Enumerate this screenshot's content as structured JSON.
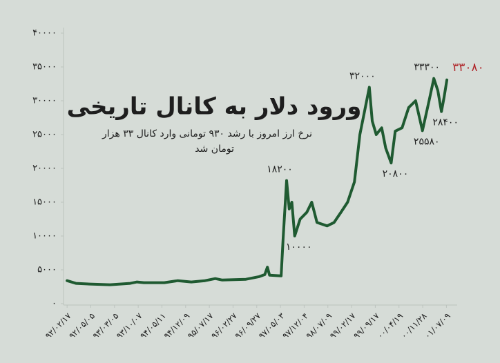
{
  "chart_data": {
    "type": "line",
    "title": "ورود دلار به کانال تاریخی",
    "subtitle": [
      "نرخ ارز امروز با رشد ۹۳۰ تومانی وارد  کانال ۳۳ هزار",
      "تومان شد"
    ],
    "color": "#1f5a31",
    "last_label_color": "#b0262a",
    "x": [
      0,
      0.37,
      0.95,
      1.81,
      2.66,
      2.95,
      3.24,
      4.1,
      4.67,
      5.24,
      5.82,
      6.25,
      6.53,
      7.54,
      8.11,
      8.34,
      8.45,
      8.54,
      9.03,
      9.11,
      9.26,
      9.37,
      9.48,
      9.6,
      9.83,
      10.11,
      10.32,
      10.54,
      10.97,
      11.26,
      11.55,
      11.83,
      12.12,
      12.35,
      12.55,
      12.75,
      12.87,
      13.04,
      13.27,
      13.44,
      13.67,
      13.84,
      14.13,
      14.41,
      14.7,
      14.99,
      15.27,
      15.47,
      15.64,
      15.79,
      15.9,
      16.02
    ],
    "values": [
      3400,
      3000,
      2900,
      2800,
      3000,
      3200,
      3100,
      3100,
      3400,
      3200,
      3400,
      3700,
      3500,
      3600,
      4000,
      4300,
      5400,
      4200,
      4100,
      9500,
      18200,
      14000,
      15000,
      10000,
      12500,
      13500,
      15000,
      12000,
      11500,
      12000,
      13500,
      15000,
      18000,
      25000,
      28500,
      32000,
      27000,
      25000,
      26000,
      23000,
      20800,
      25500,
      26000,
      29000,
      30000,
      25580,
      30000,
      33300,
      31500,
      28400,
      30500,
      33080
    ],
    "value_labels": [
      null,
      null,
      null,
      null,
      null,
      null,
      null,
      null,
      null,
      null,
      null,
      null,
      null,
      null,
      null,
      null,
      null,
      null,
      null,
      null,
      "۱۸۲۰۰",
      null,
      null,
      "۱۰۰۰۰",
      null,
      null,
      null,
      null,
      null,
      null,
      null,
      null,
      null,
      null,
      null,
      "۳۲۰۰۰",
      null,
      null,
      null,
      null,
      "۲۰۸۰۰",
      null,
      null,
      null,
      null,
      "۲۵۵۸۰",
      null,
      "۳۳۳۰۰",
      null,
      "۲۸۴۰۰",
      null,
      "۳۳۰۸۰"
    ],
    "xlim": [
      -0.15,
      16.6
    ],
    "xticks": [
      {
        "value": 0,
        "label": "۹۲/۰۲/۱۷"
      },
      {
        "value": 1,
        "label": "۹۲/۰۵/۰۵"
      },
      {
        "value": 2,
        "label": "۹۳/۰۳/۰۵"
      },
      {
        "value": 3,
        "label": "۹۳/۱۰/۰۷"
      },
      {
        "value": 4,
        "label": "۹۴/۰۵/۱۱"
      },
      {
        "value": 5,
        "label": "۹۴/۱۲/۰۹"
      },
      {
        "value": 6,
        "label": "۹۵/۰۷/۱۷"
      },
      {
        "value": 7,
        "label": "۹۶/۰۲/۲۷"
      },
      {
        "value": 8,
        "label": "۹۶/۰۹/۲۷"
      },
      {
        "value": 9,
        "label": "۹۷/۰۵/۰۳"
      },
      {
        "value": 10,
        "label": "۹۷/۱۲/۰۴"
      },
      {
        "value": 11,
        "label": "۹۸/۰۷/۰۹"
      },
      {
        "value": 12,
        "label": "۹۹/۰۲/۱۷"
      },
      {
        "value": 13,
        "label": "۹۹/۰۹/۱۷"
      },
      {
        "value": 14,
        "label": "۰۰/۰۴/۱۹"
      },
      {
        "value": 15,
        "label": "۰۰/۱۱/۲۸"
      },
      {
        "value": 16,
        "label": "۰۱/۰۷/۰۹"
      }
    ],
    "ylim": [
      0,
      40000
    ],
    "yticks": [
      {
        "value": 0,
        "label": "۰"
      },
      {
        "value": 5000,
        "label": "۵۰۰۰"
      },
      {
        "value": 10000,
        "label": "۱۰۰۰۰"
      },
      {
        "value": 15000,
        "label": "۱۵۰۰۰"
      },
      {
        "value": 20000,
        "label": "۲۰۰۰۰"
      },
      {
        "value": 25000,
        "label": "۲۵۰۰۰"
      },
      {
        "value": 30000,
        "label": "۳۰۰۰۰"
      },
      {
        "value": 35000,
        "label": "۳۵۰۰۰"
      },
      {
        "value": 40000,
        "label": "۴۰۰۰۰"
      }
    ],
    "grid": false
  }
}
